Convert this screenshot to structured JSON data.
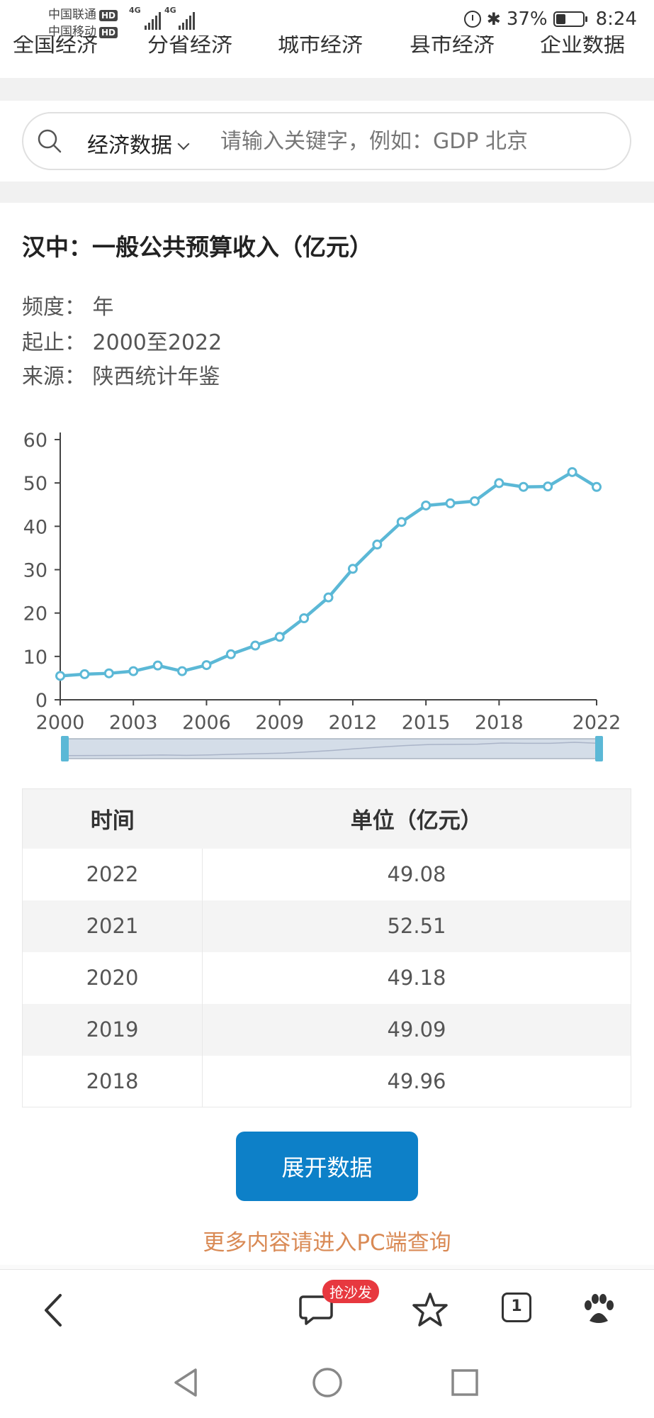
{
  "status_bar": {
    "carrier1": "中国联通",
    "carrier2": "中国移动",
    "hd": "HD",
    "net1": "4G",
    "net2": "4G",
    "battery": "37%",
    "time": "8:24"
  },
  "top_nav": [
    "全国经济",
    "分省经济",
    "城市经济",
    "县市经济",
    "企业数据"
  ],
  "search": {
    "category": "经济数据",
    "placeholder": "请输入关键字，例如：GDP 北京"
  },
  "page": {
    "title": "汉中：一般公共预算收入（亿元）",
    "frequency": "频度：  年",
    "range": "起止：  2000至2022",
    "source": "来源：  陕西统计年鉴"
  },
  "chart_data": {
    "type": "line",
    "x": [
      2000,
      2001,
      2002,
      2003,
      2004,
      2005,
      2006,
      2007,
      2008,
      2009,
      2010,
      2011,
      2012,
      2013,
      2014,
      2015,
      2016,
      2017,
      2018,
      2019,
      2020,
      2021,
      2022
    ],
    "series": [
      {
        "values": [
          5.5,
          5.9,
          6.1,
          6.6,
          7.9,
          6.6,
          8.0,
          10.5,
          12.5,
          14.5,
          18.8,
          23.6,
          30.2,
          35.8,
          41.0,
          44.8,
          45.3,
          45.8,
          49.96,
          49.09,
          49.18,
          52.51,
          49.08
        ]
      }
    ],
    "y_ticks": [
      0,
      10,
      20,
      30,
      40,
      50,
      60
    ],
    "x_ticks": [
      "2000",
      "2003",
      "2006",
      "2009",
      "2012",
      "2015",
      "2018",
      "2022"
    ],
    "ylim": [
      0,
      60
    ],
    "line_color": "#5bb8d6",
    "has_zoom_slider": true
  },
  "table": {
    "headers": [
      "时间",
      "单位（亿元）"
    ],
    "rows": [
      [
        "2022",
        "49.08"
      ],
      [
        "2021",
        "52.51"
      ],
      [
        "2020",
        "49.18"
      ],
      [
        "2019",
        "49.09"
      ],
      [
        "2018",
        "49.96"
      ]
    ]
  },
  "expand_button": "展开数据",
  "pc_link": "更多内容请进入PC端查询",
  "bottom_bar": {
    "badge": "抢沙发",
    "tab_count": "1"
  },
  "colors": {
    "accent_button": "#0d80c8",
    "link_orange": "#d98a55",
    "badge_red": "#e7383f"
  }
}
